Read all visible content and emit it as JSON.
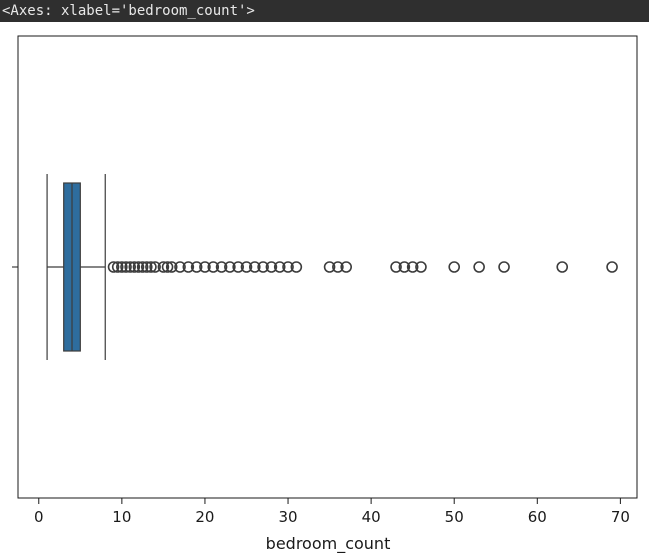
{
  "output_repr": "<Axes: xlabel='bedroom_count'>",
  "chart_data": {
    "type": "box",
    "orientation": "horizontal",
    "xlabel": "bedroom_count",
    "ylabel": "",
    "xlim": [
      -2.5,
      72
    ],
    "xticks": [
      0,
      10,
      20,
      30,
      40,
      50,
      60,
      70
    ],
    "box": {
      "whisker_low": 1,
      "q1": 3,
      "median": 4,
      "q3": 5,
      "whisker_high": 8
    },
    "outliers": [
      9,
      9.5,
      10,
      10.5,
      11,
      11.5,
      12,
      12.5,
      13,
      13.5,
      14,
      15,
      15.5,
      16,
      17,
      18,
      19,
      20,
      21,
      22,
      23,
      24,
      25,
      26,
      27,
      28,
      29,
      30,
      31,
      35,
      36,
      37,
      43,
      44,
      45,
      46,
      50,
      53,
      56,
      63,
      69
    ],
    "colors": {
      "box_fill": "#2e6d9e",
      "line": "#3c3c3c",
      "outlier_edge": "#3c3c3c"
    },
    "grid": false,
    "legend": "none"
  }
}
